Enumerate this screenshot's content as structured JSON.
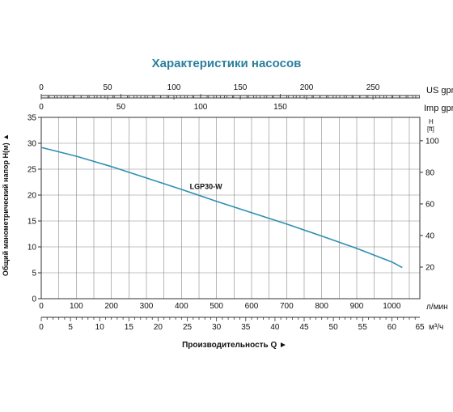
{
  "chart_data": {
    "type": "line",
    "title": "Характеристики насосов",
    "ylabel": "Общий манометрический напор  H(м) ▲",
    "xlabel": "Производительность Q  ►",
    "x": {
      "unit_label": "л/мин",
      "range": [
        0,
        1080
      ],
      "ticks": [
        0,
        100,
        200,
        300,
        400,
        500,
        600,
        700,
        800,
        900,
        1000
      ],
      "grid_step": 50
    },
    "y": {
      "range": [
        0,
        35
      ],
      "ticks": [
        0,
        5,
        10,
        15,
        20,
        25,
        30,
        35
      ]
    },
    "y_right": {
      "unit_label_top": "H",
      "unit_label_bottom": "[ft]",
      "range_ft": [
        0,
        114.8
      ],
      "ticks": [
        20,
        40,
        60,
        80,
        100
      ]
    },
    "x_top1": {
      "unit_label": "US gpm",
      "ticks": [
        0,
        50,
        100,
        150,
        200,
        250
      ],
      "lpm_per_unit": 3.785
    },
    "x_top2": {
      "unit_label": "Imp gpm",
      "ticks": [
        0,
        50,
        100,
        150
      ],
      "lpm_per_unit": 4.546
    },
    "x_bottom2": {
      "unit_label": "м³/ч",
      "ticks": [
        0,
        5,
        10,
        15,
        20,
        25,
        30,
        35,
        40,
        45,
        50,
        55,
        60,
        65
      ],
      "lpm_per_unit": 16.667
    },
    "grid": true,
    "series": [
      {
        "name": "LGP30-W",
        "color": "#2e8fb0",
        "x": [
          0,
          100,
          200,
          300,
          400,
          500,
          600,
          700,
          800,
          900,
          1000,
          1030
        ],
        "y": [
          29.2,
          27.5,
          25.5,
          23.3,
          21.1,
          18.8,
          16.6,
          14.4,
          12.1,
          9.7,
          7.1,
          6.0
        ]
      }
    ]
  },
  "colors": {
    "title": "#2a7f9e",
    "curve": "#2e8fb0",
    "axis": "#333333",
    "grid": "#888888",
    "text": "#111111"
  }
}
